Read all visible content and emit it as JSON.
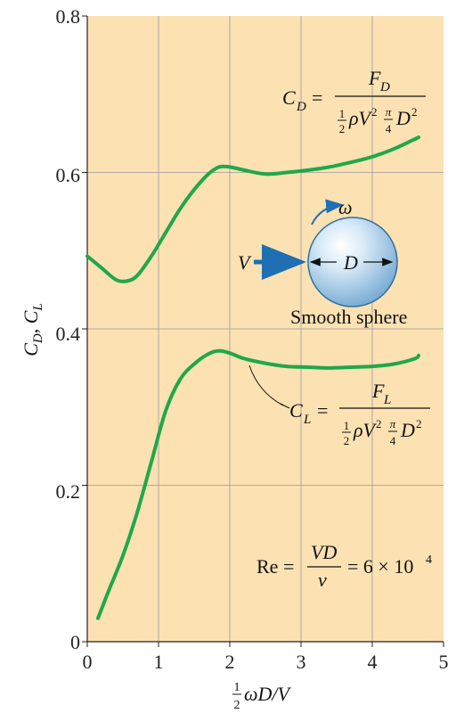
{
  "chart_data": {
    "type": "line",
    "title": "",
    "xlabel": "",
    "ylabel": "",
    "xlim": [
      0,
      5
    ],
    "ylim": [
      0,
      0.8
    ],
    "x_ticks": [
      "0",
      "1",
      "2",
      "3",
      "4",
      "5"
    ],
    "y_ticks": [
      "0",
      "0.2",
      "0.4",
      "0.6",
      "0.8"
    ],
    "grid": true,
    "background": "#fce1b2",
    "line_color": "#1fa84a",
    "series": [
      {
        "name": "C_D",
        "x": [
          0.0,
          0.2,
          0.4,
          0.55,
          0.7,
          0.9,
          1.1,
          1.3,
          1.5,
          1.7,
          1.85,
          2.0,
          2.2,
          2.5,
          2.8,
          3.1,
          3.4,
          3.7,
          4.0,
          4.3,
          4.65
        ],
        "y": [
          0.493,
          0.478,
          0.463,
          0.461,
          0.468,
          0.493,
          0.523,
          0.553,
          0.578,
          0.598,
          0.607,
          0.607,
          0.603,
          0.598,
          0.6,
          0.603,
          0.607,
          0.613,
          0.62,
          0.63,
          0.645
        ]
      },
      {
        "name": "C_L",
        "x": [
          0.15,
          0.3,
          0.5,
          0.7,
          0.9,
          1.1,
          1.3,
          1.5,
          1.7,
          1.85,
          2.0,
          2.2,
          2.5,
          2.8,
          3.1,
          3.4,
          3.7,
          4.0,
          4.3,
          4.6,
          4.65
        ],
        "y": [
          0.03,
          0.065,
          0.11,
          0.165,
          0.23,
          0.295,
          0.335,
          0.355,
          0.368,
          0.372,
          0.369,
          0.362,
          0.356,
          0.352,
          0.351,
          0.35,
          0.351,
          0.352,
          0.355,
          0.362,
          0.366
        ]
      }
    ],
    "texts": {
      "y_axis_label": "C_D, C_L",
      "x_axis_label": "½ωD/V",
      "cd_formula": "C_D = F_D / (½ρV² π/4 D²)",
      "cl_formula": "C_L = F_L / (½ρV² π/4 D²)",
      "re_formula": "Re = VD/ν = 6 × 10⁴",
      "sphere_caption": "Smooth sphere",
      "omega_label": "ω",
      "velocity_label": "V",
      "diameter_label": "D"
    }
  }
}
